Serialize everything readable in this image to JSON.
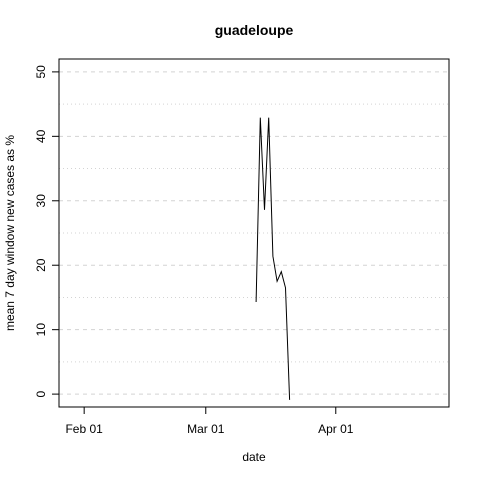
{
  "chart_data": {
    "type": "line",
    "title": "guadeloupe",
    "xlabel": "date",
    "ylabel": "mean  7  day window new cases as %",
    "x_ticks": [
      "2020-02-01",
      "2020-03-01",
      "2020-04-01"
    ],
    "x_tick_labels": [
      "Feb 01",
      "Mar 01",
      "Apr 01"
    ],
    "xlim": [
      "2020-01-26",
      "2020-04-28"
    ],
    "y_ticks": [
      0,
      10,
      20,
      30,
      40,
      50
    ],
    "y_tick_labels": [
      "0",
      "10",
      "20",
      "30",
      "40",
      "50"
    ],
    "ylim": [
      -2,
      52
    ],
    "grid": {
      "major_y": [
        0,
        10,
        20,
        30,
        40,
        50
      ],
      "minor_y": [
        5,
        15,
        25,
        35,
        45
      ],
      "x": false
    },
    "legend": "none",
    "series": [
      {
        "color": "#000000",
        "points": [
          {
            "x": "2020-03-13",
            "y": 14.3
          },
          {
            "x": "2020-03-14",
            "y": 42.9
          },
          {
            "x": "2020-03-15",
            "y": 28.6
          },
          {
            "x": "2020-03-16",
            "y": 42.9
          },
          {
            "x": "2020-03-17",
            "y": 21.4
          },
          {
            "x": "2020-03-18",
            "y": 17.5
          },
          {
            "x": "2020-03-19",
            "y": 19.0
          },
          {
            "x": "2020-03-20",
            "y": 16.5
          },
          {
            "x": "2020-03-21",
            "y": -0.9
          }
        ]
      }
    ]
  }
}
